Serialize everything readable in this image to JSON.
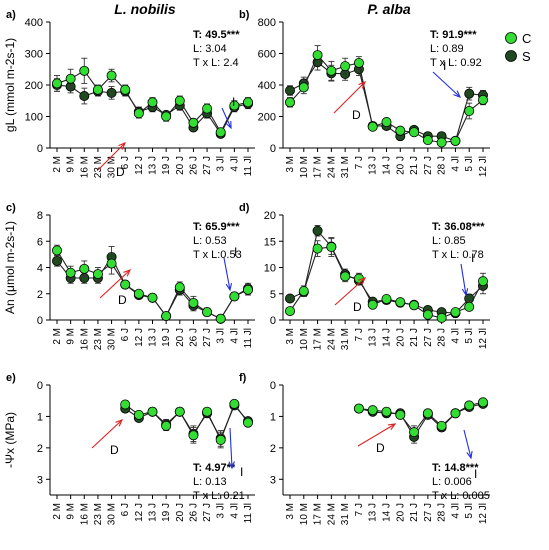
{
  "figure": {
    "col_titles": [
      "L. nobilis",
      "P. alba"
    ],
    "legend": [
      {
        "label": "C",
        "color": "#33dd33"
      },
      {
        "label": "S",
        "color": "#1f4a1f"
      }
    ],
    "colors": {
      "control": "#33dd33",
      "stress": "#1f4a1f",
      "arrow_d": "#e02020",
      "arrow_i": "#2030e0",
      "axis": "#000000"
    }
  },
  "chart_data": [
    {
      "id": "a",
      "type": "line",
      "panel_label": "a)",
      "species": "L. nobilis",
      "ylabel": "gL (mmol m-2s-1)",
      "ylim": [
        0,
        400
      ],
      "yticks": [
        0,
        100,
        200,
        300,
        400
      ],
      "categories": [
        "2 M",
        "9 M",
        "16 M",
        "23 M",
        "30 M",
        "6 J",
        "12 J",
        "13 J",
        "19 J",
        "20 J",
        "26 J",
        "27 J",
        "3 Jl",
        "4 Jl",
        "11 Jl"
      ],
      "series": [
        {
          "name": "C",
          "x": [
            0,
            1,
            2,
            3,
            4,
            5,
            6,
            7,
            8,
            9,
            10,
            11,
            12,
            13,
            14
          ],
          "values": [
            205,
            220,
            245,
            185,
            230,
            185,
            110,
            145,
            100,
            150,
            80,
            125,
            50,
            135,
            145
          ],
          "err": [
            25,
            30,
            40,
            15,
            20,
            15,
            15,
            15,
            15,
            15,
            10,
            15,
            10,
            15,
            15
          ]
        },
        {
          "name": "S",
          "x": [
            0,
            1,
            2,
            3,
            4,
            5,
            6,
            7,
            8,
            9,
            10,
            11,
            12,
            13,
            14
          ],
          "values": [
            200,
            195,
            165,
            180,
            175,
            180,
            115,
            130,
            105,
            135,
            65,
            110,
            45,
            130,
            140
          ],
          "err": [
            20,
            20,
            25,
            15,
            20,
            15,
            15,
            15,
            10,
            15,
            10,
            15,
            10,
            15,
            15
          ]
        }
      ],
      "stats": {
        "T": "T: 49.5***",
        "L": "L: 3.04",
        "TxL": "T x L: 2.4"
      },
      "markers": {
        "D": "D",
        "I": "I"
      }
    },
    {
      "id": "b",
      "type": "line",
      "panel_label": "b)",
      "species": "P. alba",
      "ylabel": "",
      "ylim": [
        0,
        800
      ],
      "yticks": [
        0,
        200,
        400,
        600,
        800
      ],
      "categories": [
        "3 M",
        "10 M",
        "17 M",
        "24 M",
        "31 M",
        "7 J",
        "13 J",
        "14 J",
        "20 J",
        "21 J",
        "27 J",
        "28 J",
        "4 Jl",
        "5 Jl",
        "12 Jl"
      ],
      "series": [
        {
          "name": "C",
          "x": [
            0,
            1,
            2,
            3,
            4,
            5,
            6,
            7,
            8,
            9,
            10,
            11,
            12,
            13,
            14
          ],
          "values": [
            290,
            385,
            590,
            490,
            520,
            540,
            135,
            165,
            110,
            100,
            50,
            35,
            45,
            235,
            305
          ],
          "err": [
            30,
            40,
            60,
            60,
            50,
            40,
            20,
            20,
            20,
            15,
            10,
            10,
            10,
            50,
            30
          ]
        },
        {
          "name": "S",
          "x": [
            0,
            1,
            2,
            3,
            4,
            5,
            6,
            7,
            8,
            9,
            10,
            11,
            12,
            13,
            14
          ],
          "values": [
            365,
            410,
            545,
            475,
            470,
            500,
            140,
            140,
            75,
            115,
            75,
            75,
            45,
            345,
            335
          ],
          "err": [
            30,
            40,
            50,
            50,
            40,
            40,
            20,
            20,
            15,
            15,
            10,
            10,
            10,
            40,
            30
          ]
        }
      ],
      "stats": {
        "T": "T: 91.9***",
        "L": "L: 0.89",
        "TxL": "T x L: 0.92"
      },
      "markers": {
        "D": "D",
        "I": "I"
      }
    },
    {
      "id": "c",
      "type": "line",
      "panel_label": "c)",
      "species": "L. nobilis",
      "ylabel": "An (μmol m-2s-1)",
      "ylim": [
        0,
        8
      ],
      "yticks": [
        0,
        2,
        4,
        6,
        8
      ],
      "categories": [
        "2 M",
        "9 M",
        "16 M",
        "23 M",
        "30 M",
        "6 J",
        "12 J",
        "13 J",
        "19 J",
        "20 J",
        "26 J",
        "27 J",
        "3 Jl",
        "4 Jl",
        "11 Jl"
      ],
      "series": [
        {
          "name": "C",
          "x": [
            0,
            1,
            2,
            3,
            4,
            5,
            6,
            7,
            8,
            9,
            10,
            11,
            12,
            13,
            14
          ],
          "values": [
            5.3,
            3.6,
            3.9,
            3.5,
            4.3,
            2.7,
            2.0,
            1.7,
            0.3,
            2.5,
            1.3,
            0.6,
            0.1,
            1.8,
            2.3
          ],
          "err": [
            0.4,
            0.5,
            0.6,
            0.5,
            0.8,
            0.2,
            0.2,
            0.2,
            0.1,
            0.4,
            0.5,
            0.3,
            0.1,
            0.3,
            0.4
          ]
        },
        {
          "name": "S",
          "x": [
            0,
            1,
            2,
            3,
            4,
            5,
            6,
            7,
            8,
            9,
            10,
            11,
            12,
            13,
            14
          ],
          "values": [
            4.5,
            3.2,
            3.2,
            3.2,
            4.8,
            2.7,
            1.9,
            1.7,
            0.3,
            2.3,
            1.1,
            0.6,
            0.1,
            1.8,
            2.4
          ],
          "err": [
            0.4,
            0.4,
            0.4,
            0.4,
            0.8,
            0.2,
            0.2,
            0.2,
            0.1,
            0.4,
            0.4,
            0.3,
            0.1,
            0.3,
            0.4
          ]
        }
      ],
      "stats": {
        "T": "T: 65.9***",
        "L": "L: 0.53",
        "TxL": "T x L:0.53"
      },
      "markers": {
        "D": "D",
        "I": "I"
      }
    },
    {
      "id": "d",
      "type": "line",
      "panel_label": "d)",
      "species": "P. alba",
      "ylabel": "",
      "ylim": [
        0,
        20
      ],
      "yticks": [
        0,
        5,
        10,
        15,
        20
      ],
      "categories": [
        "3 M",
        "10 M",
        "17 M",
        "24 M",
        "31 M",
        "7 J",
        "13 J",
        "14 J",
        "20 J",
        "21 J",
        "27 J",
        "28 J",
        "4 Jl",
        "5 Jl",
        "12 Jl"
      ],
      "series": [
        {
          "name": "C",
          "x": [
            0,
            1,
            2,
            3,
            4,
            5,
            6,
            7,
            8,
            9,
            10,
            11,
            12,
            13,
            14
          ],
          "values": [
            1.7,
            5.5,
            13.6,
            13.9,
            8.3,
            7.9,
            2.9,
            4.0,
            3.4,
            2.8,
            1.0,
            0.4,
            1.5,
            2.5,
            7.4
          ],
          "err": [
            0.3,
            1.0,
            1.5,
            1.8,
            1.0,
            1.0,
            0.5,
            0.5,
            0.5,
            0.5,
            0.3,
            0.2,
            0.4,
            0.6,
            1.5
          ]
        },
        {
          "name": "S",
          "x": [
            0,
            1,
            2,
            3,
            4,
            5,
            6,
            7,
            8,
            9,
            10,
            11,
            12,
            13,
            14
          ],
          "values": [
            4.1,
            5.3,
            17.0,
            14.0,
            8.7,
            7.5,
            3.5,
            3.8,
            3.3,
            2.9,
            1.9,
            1.5,
            1.3,
            4.1,
            6.5
          ],
          "err": [
            0.3,
            0.8,
            1.0,
            1.5,
            1.0,
            0.8,
            0.5,
            0.5,
            0.5,
            0.5,
            0.4,
            0.3,
            0.3,
            0.8,
            1.5
          ]
        }
      ],
      "stats": {
        "T": "T: 36.08***",
        "L": "L: 0.85",
        "TxL": "T x L: 0.78"
      },
      "markers": {
        "D": "D",
        "I": "I"
      }
    },
    {
      "id": "e",
      "type": "line",
      "panel_label": "e)",
      "species": "L. nobilis",
      "ylabel": "-Ψx (MPa)",
      "ylim": [
        0,
        3.5
      ],
      "yticks": [
        0,
        1,
        2,
        3
      ],
      "y_inverted": true,
      "categories": [
        "2 M",
        "9 M",
        "16 M",
        "23 M",
        "30 M",
        "6 J",
        "12 J",
        "13 J",
        "19 J",
        "20 J",
        "26 J",
        "27 J",
        "3 Jl",
        "4 Jl",
        "11 Jl"
      ],
      "series": [
        {
          "name": "C",
          "x": [
            5,
            6,
            7,
            8,
            9,
            10,
            11,
            12,
            13,
            14
          ],
          "values": [
            0.62,
            0.95,
            0.85,
            1.3,
            0.85,
            1.6,
            0.85,
            1.75,
            0.6,
            1.2
          ],
          "err": [
            0.1,
            0.1,
            0.1,
            0.15,
            0.1,
            0.25,
            0.1,
            0.25,
            0.1,
            0.1
          ]
        },
        {
          "name": "S",
          "x": [
            5,
            6,
            7,
            8,
            9,
            10,
            11,
            12,
            13,
            14
          ],
          "values": [
            0.75,
            1.05,
            0.85,
            1.25,
            0.85,
            1.55,
            0.9,
            1.7,
            0.65,
            1.15
          ],
          "err": [
            0.1,
            0.1,
            0.1,
            0.15,
            0.1,
            0.25,
            0.1,
            0.25,
            0.1,
            0.1
          ]
        }
      ],
      "stats": {
        "T": "T: 4.97**",
        "L": "L: 0.13",
        "TxL": "T x L: 0.21"
      },
      "markers": {
        "D": "D",
        "I": "I"
      }
    },
    {
      "id": "f",
      "type": "line",
      "panel_label": "f)",
      "species": "P. alba",
      "ylabel": "",
      "ylim": [
        0,
        3.5
      ],
      "yticks": [
        0,
        1,
        2,
        3
      ],
      "y_inverted": true,
      "categories": [
        "3 M",
        "10 M",
        "17 M",
        "24 M",
        "31 M",
        "7 J",
        "13 J",
        "14 J",
        "20 J",
        "21 J",
        "27 J",
        "28 J",
        "4 Jl",
        "5 Jl",
        "12 Jl"
      ],
      "series": [
        {
          "name": "C",
          "x": [
            5,
            6,
            7,
            8,
            9,
            10,
            11,
            12,
            13,
            14
          ],
          "values": [
            0.75,
            0.8,
            0.85,
            0.95,
            1.5,
            0.9,
            1.3,
            0.9,
            0.65,
            0.55
          ],
          "err": [
            0.05,
            0.05,
            0.05,
            0.1,
            0.2,
            0.1,
            0.1,
            0.05,
            0.05,
            0.05
          ]
        },
        {
          "name": "S",
          "x": [
            5,
            6,
            7,
            8,
            9,
            10,
            11,
            12,
            13,
            14
          ],
          "values": [
            0.75,
            0.85,
            0.9,
            0.9,
            1.65,
            0.95,
            1.35,
            0.9,
            0.7,
            0.6
          ],
          "err": [
            0.05,
            0.05,
            0.05,
            0.1,
            0.2,
            0.1,
            0.1,
            0.05,
            0.05,
            0.05
          ]
        }
      ],
      "stats": {
        "T": "T: 14.8***",
        "L": "L: 0.006",
        "TxL": "T x L: 0.005"
      },
      "markers": {
        "D": "D",
        "I": "I"
      }
    }
  ]
}
